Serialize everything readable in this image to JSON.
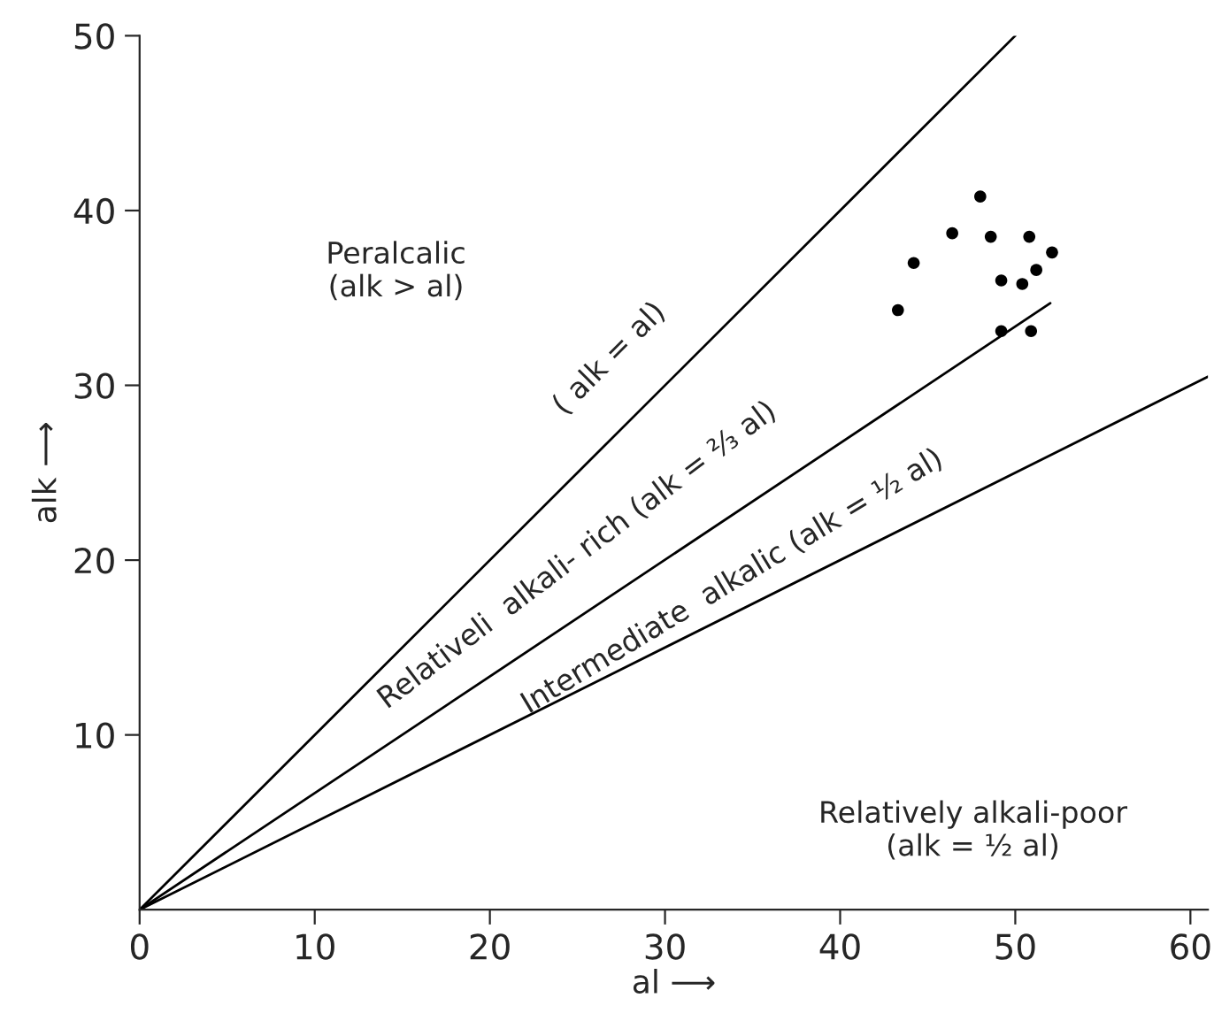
{
  "chart_data": {
    "type": "line",
    "xlabel": "al ⟶",
    "ylabel": "alk ⟶",
    "xlim": [
      0,
      61
    ],
    "ylim": [
      0,
      50
    ],
    "xticks": [
      0,
      10,
      20,
      30,
      40,
      50,
      60
    ],
    "yticks": [
      10,
      20,
      30,
      40,
      50
    ],
    "grid": false,
    "legend": false,
    "series": [
      {
        "type": "scatter",
        "marker": "circle",
        "color": "#000000",
        "x": [
          48.0,
          46.4,
          48.6,
          50.8,
          52.1,
          44.2,
          51.2,
          49.2,
          50.4,
          43.3,
          49.2,
          50.9
        ],
        "values": [
          40.8,
          38.7,
          38.5,
          38.5,
          37.6,
          37.0,
          36.6,
          36.0,
          35.8,
          34.3,
          33.1,
          33.1
        ]
      },
      {
        "color": "#000000",
        "x": [
          0,
          50
        ],
        "values": [
          0,
          50
        ]
      },
      {
        "color": "#000000",
        "x": [
          0,
          52
        ],
        "values": [
          0,
          34.7
        ]
      },
      {
        "color": "#000000",
        "x": [
          0,
          61
        ],
        "values": [
          0,
          30.5
        ]
      }
    ],
    "annotations": [
      "Peralcalic\n(alk > al)",
      "( alk = al)",
      "Relativeli  alkali- rich (alk = ⅔ al)",
      "Intermediate  alkalic (alk = ½ al)",
      "Relatively alkali-poor\n(alk = ½ al)"
    ]
  }
}
